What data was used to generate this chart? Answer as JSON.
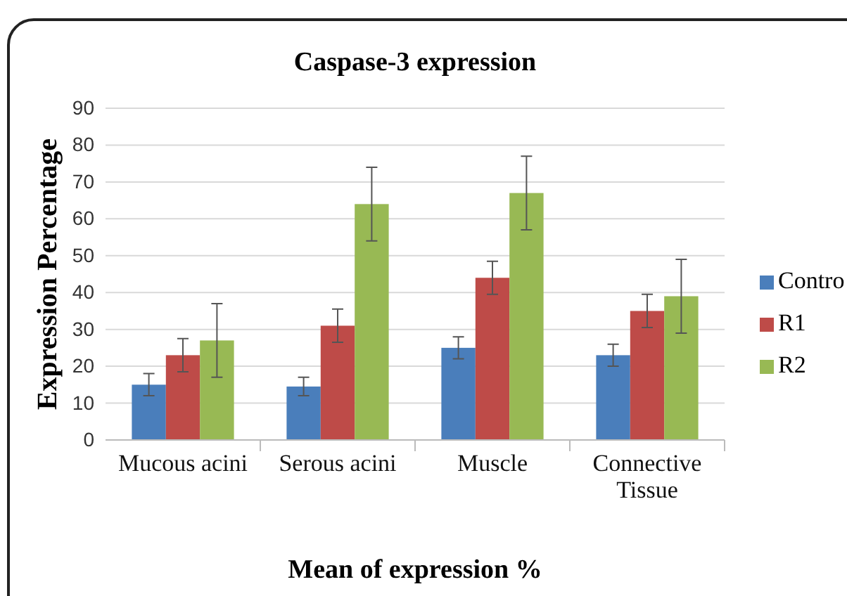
{
  "chart_data": {
    "type": "bar",
    "title": "Caspase-3 expression",
    "xlabel": "Mean of expression %",
    "ylabel": "Expression Percentage",
    "categories": [
      "Mucous acini",
      "Serous acini",
      "Muscle",
      "Connective Tissue"
    ],
    "series": [
      {
        "name": "Contro",
        "color": "#4a7ebb",
        "values": [
          15,
          14.5,
          25,
          23
        ],
        "errors": [
          3,
          2.5,
          3,
          3
        ]
      },
      {
        "name": "R1",
        "color": "#be4b48",
        "values": [
          23,
          31,
          44,
          35
        ],
        "errors": [
          4.5,
          4.5,
          4.5,
          4.5
        ]
      },
      {
        "name": "R2",
        "color": "#98b954",
        "values": [
          27,
          64,
          67,
          39
        ],
        "errors": [
          10,
          10,
          10,
          10
        ]
      }
    ],
    "ylim": [
      0,
      90
    ],
    "yticks": [
      0,
      10,
      20,
      30,
      40,
      50,
      60,
      70,
      80,
      90
    ],
    "grid": "y",
    "legend": "right"
  }
}
